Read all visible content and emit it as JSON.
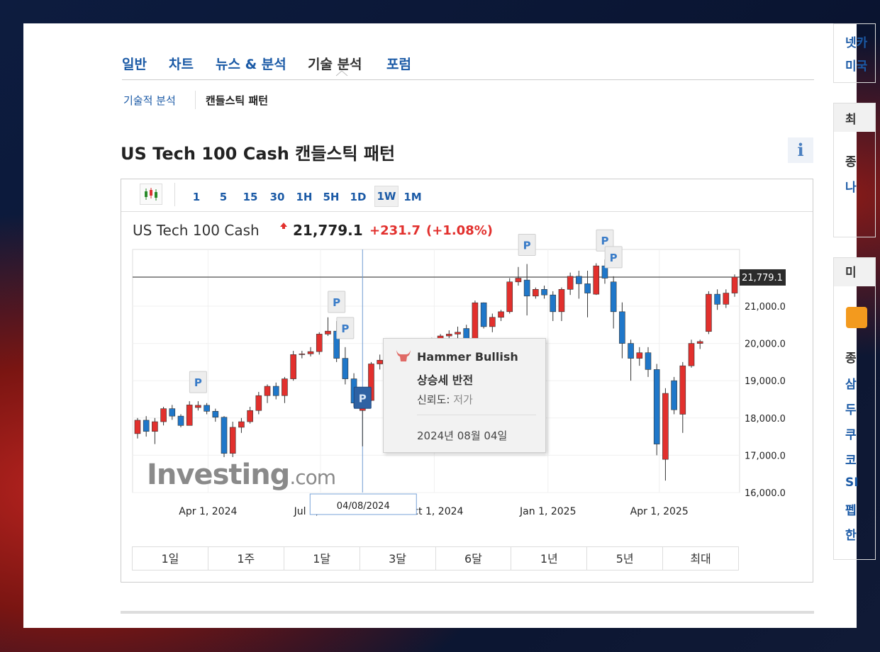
{
  "tabs": [
    "일반",
    "차트",
    "뉴스 & 분석",
    "기술 분석",
    "포럼"
  ],
  "subtabs": [
    "기술적 분석",
    "캔들스틱 패턴"
  ],
  "title": "US Tech 100 Cash 캔들스틱 패턴",
  "info": "i",
  "intervals": [
    "1",
    "5",
    "15",
    "30",
    "1H",
    "5H",
    "1D",
    "1W",
    "1M"
  ],
  "ranges": [
    "1일",
    "1주",
    "1달",
    "3달",
    "6달",
    "1년",
    "5년",
    "최대"
  ],
  "quote": {
    "name": "US Tech 100 Cash",
    "price": "21,779.1",
    "change": "+231.7",
    "change_pct": "(+1.08%)"
  },
  "watermark": {
    "brand": "Investing",
    "suffix": ".com"
  },
  "sidebar": [
    "넷카",
    "미국",
    "최",
    "종",
    "나",
    "미",
    "종",
    "삼",
    "두",
    "쿠",
    "코",
    "SI",
    "펩",
    "한"
  ],
  "chart_data": {
    "type": "candlestick",
    "up_color": "#e2302d",
    "down_color": "#1f77c9",
    "grid": true,
    "x": [
      "2024-02-04",
      "2024-02-11",
      "2024-02-18",
      "2024-02-25",
      "2024-03-03",
      "2024-03-10",
      "2024-03-17",
      "2024-03-24",
      "2024-03-31",
      "2024-04-07",
      "2024-04-14",
      "2024-04-21",
      "2024-04-28",
      "2024-05-05",
      "2024-05-12",
      "2024-05-19",
      "2024-05-26",
      "2024-06-02",
      "2024-06-09",
      "2024-06-16",
      "2024-06-23",
      "2024-06-30",
      "2024-07-07",
      "2024-07-14",
      "2024-07-21",
      "2024-07-28",
      "2024-08-04",
      "2024-08-11",
      "2024-08-18",
      "2024-08-25",
      "2024-09-01",
      "2024-09-08",
      "2024-09-15",
      "2024-09-22",
      "2024-09-29",
      "2024-10-06",
      "2024-10-13",
      "2024-10-20",
      "2024-10-27",
      "2024-11-03",
      "2024-11-10",
      "2024-11-17",
      "2024-11-24",
      "2024-12-01",
      "2024-12-08",
      "2024-12-15",
      "2024-12-22",
      "2024-12-29",
      "2025-01-05",
      "2025-01-12",
      "2025-01-19",
      "2025-01-26",
      "2025-02-02",
      "2025-02-09",
      "2025-02-16",
      "2025-02-23",
      "2025-03-02",
      "2025-03-09",
      "2025-03-16",
      "2025-03-23",
      "2025-03-30",
      "2025-04-06",
      "2025-04-13",
      "2025-04-20",
      "2025-04-27",
      "2025-05-04",
      "2025-05-11",
      "2025-05-18",
      "2025-05-25",
      "2025-06-01"
    ],
    "open": [
      17580,
      17940,
      17640,
      17900,
      18250,
      18050,
      17800,
      18280,
      18340,
      18180,
      18020,
      17050,
      17750,
      17900,
      18200,
      18600,
      18850,
      18600,
      19050,
      19700,
      19720,
      19780,
      20250,
      20330,
      19600,
      19050,
      18200,
      18470,
      19450,
      19550,
      19000,
      18450,
      19350,
      19700,
      20000,
      19800,
      20200,
      20250,
      20400,
      20050,
      21090,
      20450,
      20700,
      20850,
      21650,
      21700,
      21270,
      21450,
      21300,
      20850,
      21450,
      21800,
      21600,
      21320,
      22080,
      21650,
      20850,
      20000,
      19600,
      19750,
      19300,
      16890,
      19000,
      18100,
      19400,
      20000,
      20320,
      21320,
      21050,
      21350
    ],
    "high": [
      18000,
      18050,
      18000,
      18300,
      18350,
      18100,
      18450,
      18450,
      18400,
      18250,
      18050,
      17900,
      18000,
      18300,
      18700,
      18900,
      18950,
      19100,
      19800,
      19800,
      19900,
      20300,
      20700,
      20600,
      19900,
      19200,
      18500,
      19500,
      19700,
      19750,
      19100,
      19400,
      19800,
      20100,
      20150,
      20250,
      20350,
      20450,
      20500,
      21150,
      21100,
      20800,
      20900,
      21750,
      22050,
      22130,
      21500,
      21550,
      21400,
      21500,
      21900,
      21950,
      21950,
      22150,
      22250,
      21800,
      21100,
      20100,
      19900,
      19900,
      19450,
      18800,
      19100,
      19500,
      20100,
      20100,
      21400,
      21450,
      21450,
      21850
    ],
    "low": [
      17450,
      17500,
      17300,
      17800,
      17950,
      17750,
      17800,
      18200,
      18100,
      17900,
      16950,
      16950,
      17600,
      17850,
      18100,
      18400,
      18500,
      18400,
      19000,
      19600,
      19650,
      19700,
      20200,
      19500,
      18900,
      18300,
      17240,
      18450,
      19300,
      18900,
      18300,
      18400,
      19300,
      19600,
      19700,
      19750,
      20000,
      20050,
      19850,
      20000,
      20400,
      20300,
      20600,
      20800,
      21550,
      20750,
      21200,
      21200,
      20600,
      20600,
      21300,
      21200,
      20700,
      21300,
      21600,
      20400,
      19600,
      19000,
      19400,
      19100,
      17000,
      16320,
      18100,
      17600,
      19350,
      19850,
      20250,
      20900,
      20950,
      21250
    ],
    "close": [
      17940,
      17640,
      17900,
      18250,
      18050,
      17800,
      18350,
      18340,
      18180,
      18020,
      17050,
      17750,
      17900,
      18200,
      18600,
      18850,
      18600,
      19050,
      19700,
      19720,
      19780,
      20250,
      20330,
      19600,
      19050,
      18400,
      18470,
      19450,
      19550,
      19000,
      18450,
      19350,
      19700,
      20000,
      19800,
      20200,
      20250,
      20300,
      19900,
      21090,
      20450,
      20700,
      20850,
      21650,
      21750,
      21270,
      21450,
      21300,
      20850,
      21450,
      21800,
      21600,
      21350,
      22080,
      21750,
      20850,
      20000,
      19600,
      19750,
      19300,
      17300,
      18660,
      18220,
      19400,
      20000,
      20050,
      21320,
      21050,
      21350,
      21779.1
    ],
    "xlim": [
      "2024-01-31",
      "2025-06-05"
    ],
    "xticks": [
      {
        "value": "2024-04-01",
        "label": "Apr 1, 2024"
      },
      {
        "value": "2024-07-01",
        "label": "Jul 1, 2024"
      },
      {
        "value": "2024-10-01",
        "label": "Oct 1, 2024"
      },
      {
        "value": "2025-01-01",
        "label": "Jan 1, 2025"
      },
      {
        "value": "2025-04-01",
        "label": "Apr 1, 2025"
      }
    ],
    "ylim": [
      16000,
      22520
    ],
    "yticks": [
      {
        "value": 16000,
        "label": "16,000.0"
      },
      {
        "value": 17000,
        "label": "17,000.0"
      },
      {
        "value": 18000,
        "label": "18,000.0"
      },
      {
        "value": 19000,
        "label": "19,000.0"
      },
      {
        "value": 20000,
        "label": "20,000.0"
      },
      {
        "value": 21000,
        "label": "21,000.0"
      }
    ],
    "last_price": {
      "value": 21779.1,
      "label": "21,779.1"
    },
    "patterns": [
      {
        "label": "P",
        "x": "2024-03-24"
      },
      {
        "label": "P",
        "x": "2024-07-14"
      },
      {
        "label": "P",
        "x": "2024-07-21"
      },
      {
        "label": "P",
        "x": "2024-08-04"
      },
      {
        "label": "P",
        "x": "2024-12-15"
      },
      {
        "label": "P",
        "x": "2025-02-16"
      },
      {
        "label": "P",
        "x": "2025-02-23"
      }
    ],
    "crosshair": {
      "x": "2024-08-04",
      "label": "04/08/2024"
    },
    "tooltip": {
      "title": "Hammer Bullish",
      "signal": "상승세 반전",
      "reliability_label": "신뢰도:",
      "reliability": "저가",
      "date": "2024년 08월 04일"
    }
  }
}
